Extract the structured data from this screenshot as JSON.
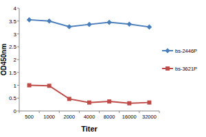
{
  "chart_data": {
    "type": "line",
    "x_label": "Titer",
    "y_label": "OD450nm",
    "categories": [
      "500",
      "1000",
      "2000",
      "4000",
      "8000",
      "16000",
      "32000"
    ],
    "series": [
      {
        "name": "bs-2446P",
        "color": "#4a7ebb",
        "marker": "diamond",
        "values": [
          3.55,
          3.5,
          3.28,
          3.37,
          3.45,
          3.38,
          3.27
        ]
      },
      {
        "name": "bs-3621P",
        "color": "#be4b48",
        "marker": "square",
        "values": [
          1.0,
          0.98,
          0.47,
          0.33,
          0.37,
          0.3,
          0.33
        ]
      }
    ],
    "ylim": [
      0,
      4
    ],
    "yticks": [
      0,
      0.5,
      1,
      1.5,
      2,
      2.5,
      3,
      3.5,
      4
    ],
    "grid": false,
    "legend": "right"
  }
}
